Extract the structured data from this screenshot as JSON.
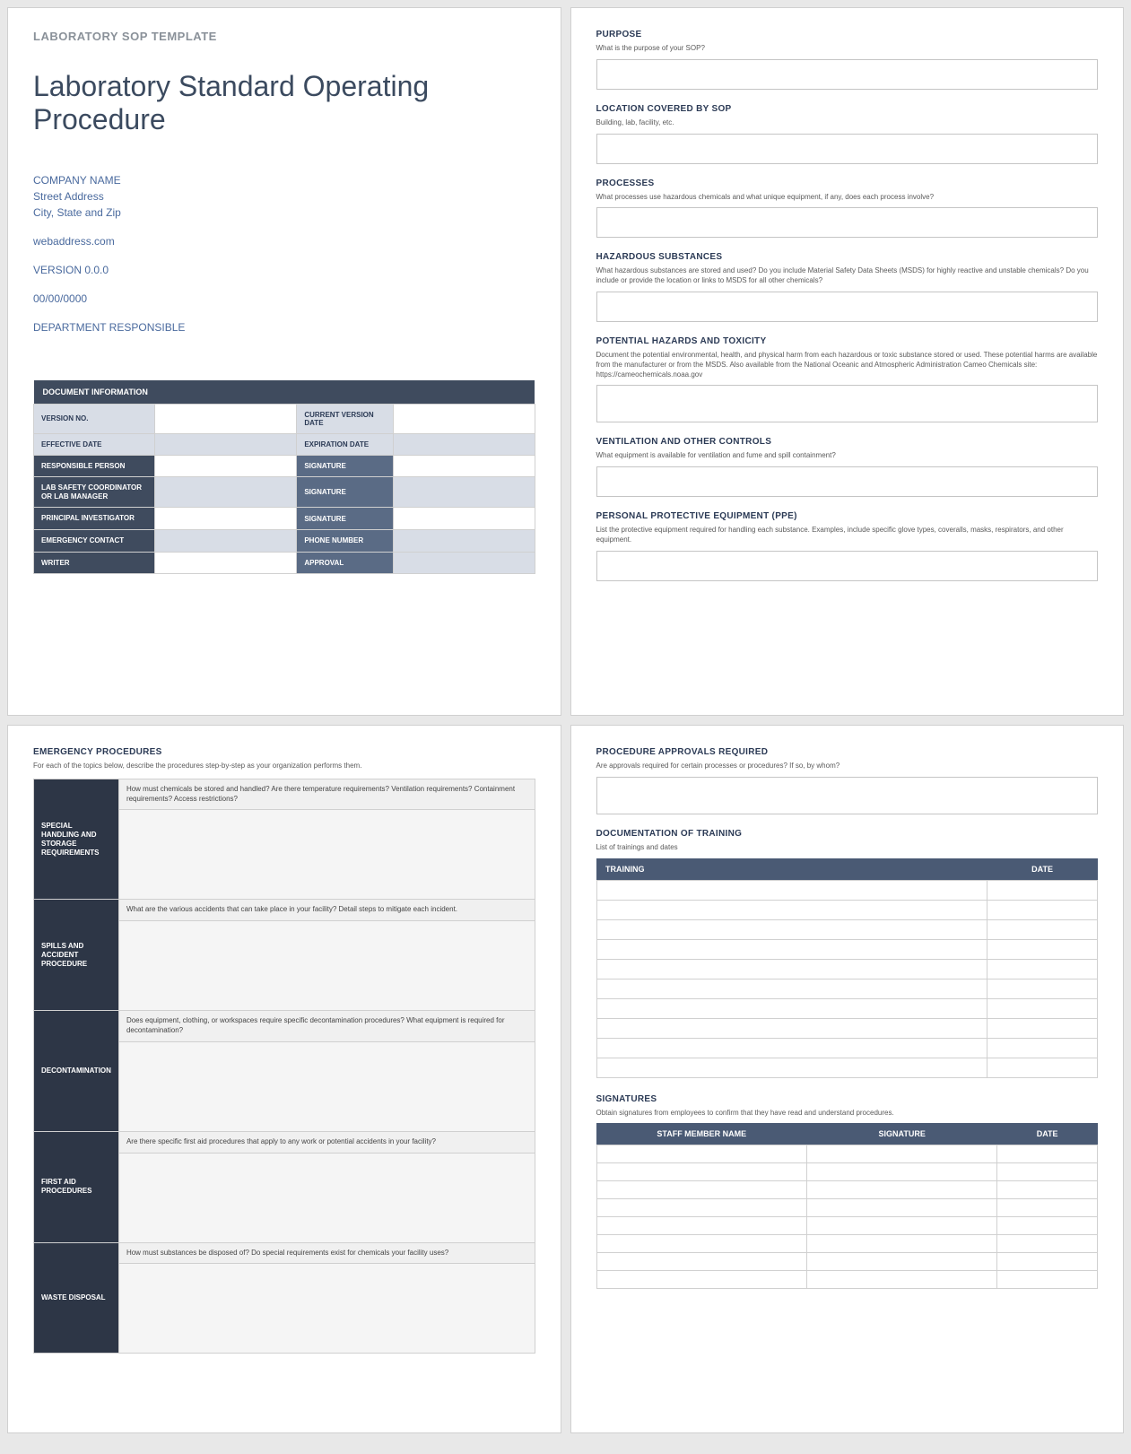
{
  "colors": {
    "page_bg": "#ffffff",
    "body_bg": "#e8e8e8",
    "label_gray": "#8a9199",
    "title": "#3b4a5f",
    "meta_text": "#4a6a9e",
    "heading": "#2b3a55",
    "desc": "#5a5a5a",
    "border": "#c5c5c5",
    "table_dark": "#3f4b5e",
    "table_mid": "#5a6b85",
    "table_light": "#d8dde6",
    "emerg_dark": "#2d3646",
    "emerg_body": "#f0f0f0",
    "header_blue": "#4a5a74"
  },
  "typography": {
    "template_label_size": 13,
    "title_size": 32,
    "meta_size": 12,
    "heading_size": 10,
    "desc_size": 8,
    "table_header_size": 9,
    "table_cell_size": 8
  },
  "page1": {
    "template_label": "LABORATORY SOP TEMPLATE",
    "title": "Laboratory Standard Operating Procedure",
    "company": "COMPANY NAME",
    "street": "Street Address",
    "citystate": "City, State and Zip",
    "web": "webaddress.com",
    "version": "VERSION 0.0.0",
    "date": "00/00/0000",
    "dept": "DEPARTMENT RESPONSIBLE",
    "doc_info_header": "DOCUMENT INFORMATION",
    "rows": {
      "version_no": "VERSION NO.",
      "current_version_date": "CURRENT VERSION DATE",
      "effective_date": "EFFECTIVE DATE",
      "expiration_date": "EXPIRATION DATE",
      "responsible_person": "RESPONSIBLE PERSON",
      "signature": "SIGNATURE",
      "lab_safety": "LAB SAFETY COORDINATOR OR LAB MANAGER",
      "principal": "PRINCIPAL INVESTIGATOR",
      "emergency_contact": "EMERGENCY CONTACT",
      "phone": "PHONE NUMBER",
      "writer": "WRITER",
      "approval": "APPROVAL"
    }
  },
  "page2": {
    "sections": [
      {
        "heading": "PURPOSE",
        "desc": "What is the purpose of your SOP?"
      },
      {
        "heading": "LOCATION COVERED BY SOP",
        "desc": "Building, lab, facility, etc."
      },
      {
        "heading": "PROCESSES",
        "desc": "What processes use hazardous chemicals and what unique equipment, if any, does each process involve?"
      },
      {
        "heading": "HAZARDOUS SUBSTANCES",
        "desc": "What hazardous substances are stored and used? Do you include Material Safety Data Sheets (MSDS) for highly reactive and unstable chemicals? Do you include or provide the location or links to MSDS for all other chemicals?"
      },
      {
        "heading": "POTENTIAL HAZARDS AND TOXICITY",
        "desc": "Document the potential environmental, health, and physical harm from each hazardous or toxic substance stored or used. These potential harms are available from the manufacturer or from the MSDS. Also available from the National Oceanic and Atmospheric Administration Cameo Chemicals site: https://cameochemicals.noaa.gov"
      },
      {
        "heading": "VENTILATION AND OTHER CONTROLS",
        "desc": "What equipment is available for ventilation and fume and spill containment?"
      },
      {
        "heading": "PERSONAL PROTECTIVE EQUIPMENT (PPE)",
        "desc": "List the protective equipment required for handling each substance. Examples, include specific glove types, coveralls, masks, respirators, and other equipment."
      }
    ]
  },
  "page3": {
    "heading": "EMERGENCY PROCEDURES",
    "desc": "For each of the topics below, describe the procedures step-by-step as your organization performs them.",
    "rows": [
      {
        "label": "SPECIAL HANDLING AND STORAGE REQUIREMENTS",
        "prompt": "How must chemicals be stored and handled? Are there temperature requirements? Ventilation requirements? Containment requirements? Access restrictions?"
      },
      {
        "label": "SPILLS AND ACCIDENT PROCEDURE",
        "prompt": "What are the various accidents that can take place in your facility? Detail steps to mitigate each incident."
      },
      {
        "label": "DECONTAMINATION",
        "prompt": "Does equipment, clothing, or workspaces require specific decontamination procedures? What equipment is required for decontamination?"
      },
      {
        "label": "FIRST AID PROCEDURES",
        "prompt": "Are there specific first aid procedures that apply to any work or potential accidents in your facility?"
      },
      {
        "label": "WASTE DISPOSAL",
        "prompt": "How must substances be disposed of? Do special requirements exist for chemicals your facility uses?"
      }
    ]
  },
  "page4": {
    "approvals": {
      "heading": "PROCEDURE APPROVALS REQUIRED",
      "desc": "Are approvals required for certain processes or procedures?  If so, by whom?"
    },
    "training": {
      "heading": "DOCUMENTATION OF TRAINING",
      "desc": "List of trainings and dates",
      "col_training": "TRAINING",
      "col_date": "DATE",
      "row_count": 10
    },
    "signatures": {
      "heading": "SIGNATURES",
      "desc": "Obtain signatures from employees to confirm that they have read and understand procedures.",
      "col_name": "STAFF MEMBER NAME",
      "col_sig": "SIGNATURE",
      "col_date": "DATE",
      "row_count": 8
    }
  }
}
